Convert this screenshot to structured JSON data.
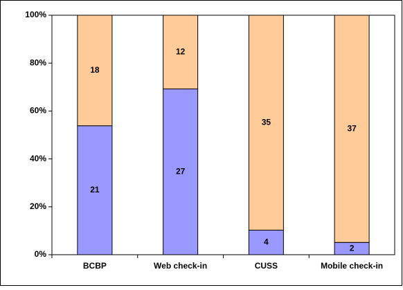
{
  "chart_data": {
    "type": "bar",
    "stack": "percent",
    "categories": [
      "BCBP",
      "Web check-in",
      "CUSS",
      "Mobile check-in"
    ],
    "series": [
      {
        "color": "#9999ff",
        "values": [
          21,
          27,
          4,
          2
        ]
      },
      {
        "color": "#ffcc99",
        "values": [
          18,
          12,
          35,
          37
        ]
      }
    ],
    "ylim": [
      0,
      100
    ],
    "yticks": [
      {
        "value": 0,
        "label": "0%"
      },
      {
        "value": 20,
        "label": "20%"
      },
      {
        "value": 40,
        "label": "40%"
      },
      {
        "value": 60,
        "label": "60%"
      },
      {
        "value": 80,
        "label": "80%"
      },
      {
        "value": 100,
        "label": "100%"
      }
    ]
  }
}
